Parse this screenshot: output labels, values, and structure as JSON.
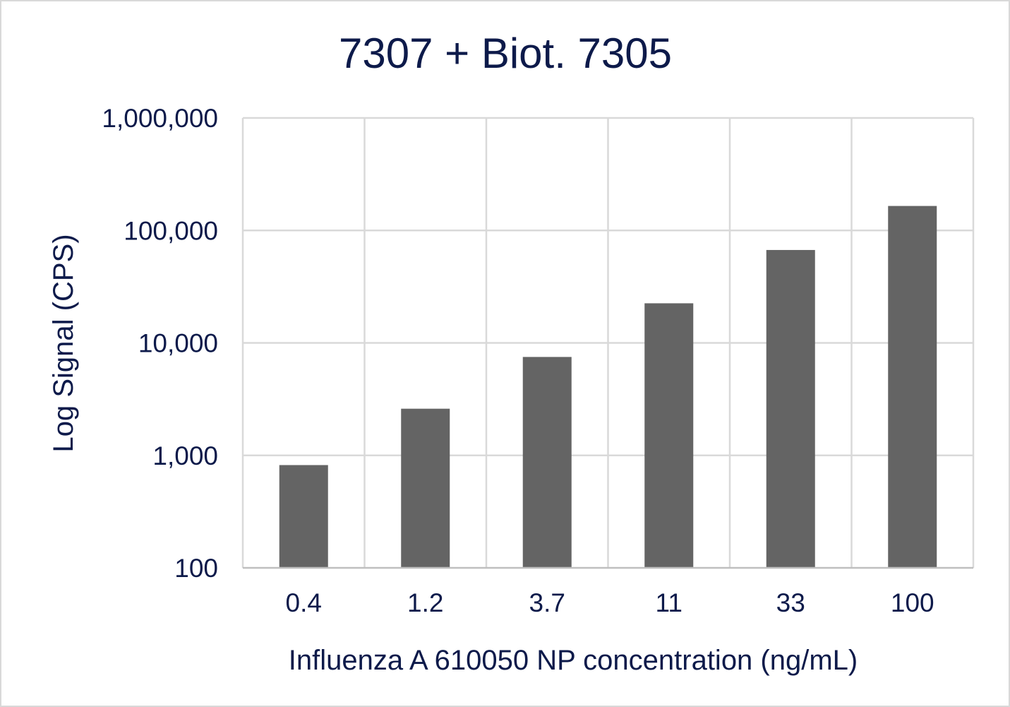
{
  "colors": {
    "bar": "#646464",
    "text": "#0d1a4a",
    "grid": "#d9d9d9"
  },
  "chart_data": {
    "type": "bar",
    "title": "7307 + Biot. 7305",
    "xlabel": "Influenza A 610050 NP concentration (ng/mL)",
    "ylabel": "Log Signal (CPS)",
    "categories": [
      "0.4",
      "1.2",
      "3.7",
      "11",
      "33",
      "100"
    ],
    "values": [
      820,
      2600,
      7500,
      22500,
      67000,
      165000
    ],
    "y_scale": "log",
    "ylim": [
      100,
      1000000
    ],
    "y_ticks": [
      100,
      1000,
      10000,
      100000,
      1000000
    ],
    "y_tick_labels": [
      "100",
      "1,000",
      "10,000",
      "100,000",
      "1,000,000"
    ],
    "grid": true,
    "legend": "none"
  }
}
